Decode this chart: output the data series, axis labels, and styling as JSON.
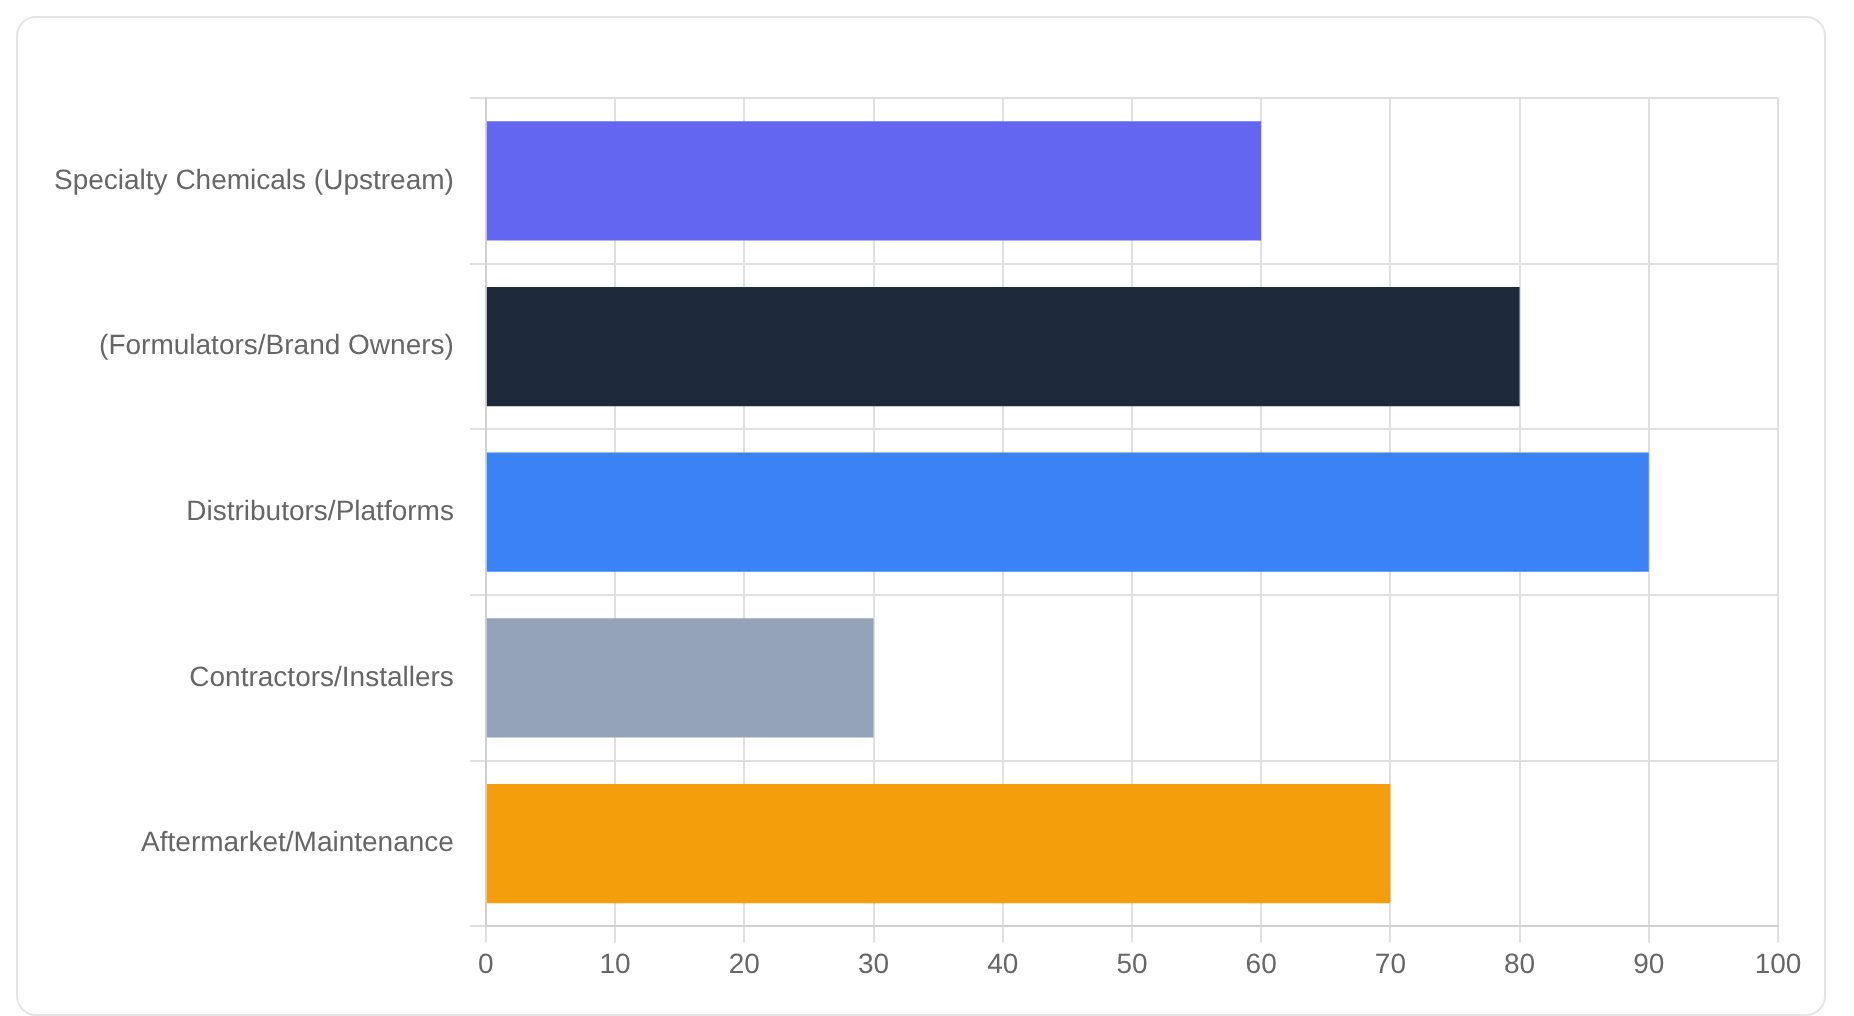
{
  "chart_data": {
    "type": "bar",
    "orientation": "horizontal",
    "categories": [
      "Specialty Chemicals (Upstream)",
      "(Formulators/Brand Owners)",
      "Distributors/Platforms",
      "Contractors/Installers",
      "Aftermarket/Maintenance"
    ],
    "values": [
      60,
      80,
      90,
      30,
      70
    ],
    "colors": [
      "#6366f1",
      "#1e293b",
      "#3b82f6",
      "#94a3b8",
      "#f59e0b"
    ],
    "xlim": [
      0,
      100
    ],
    "xticks": [
      0,
      10,
      20,
      30,
      40,
      50,
      60,
      70,
      80,
      90,
      100
    ],
    "grid": true,
    "legend": false
  }
}
